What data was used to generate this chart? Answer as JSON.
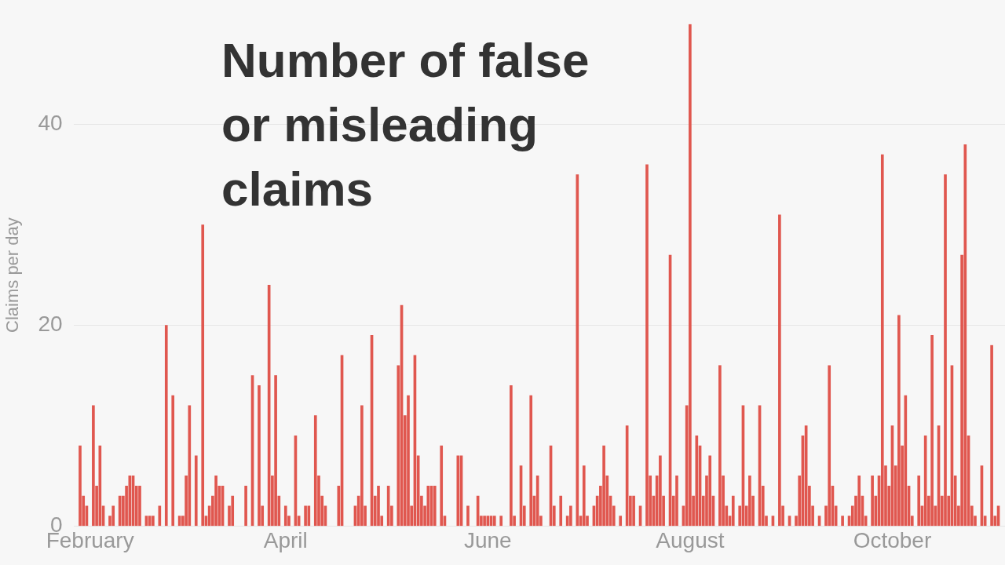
{
  "chart_data": {
    "type": "bar",
    "title": "Number of false or misleading claims",
    "ylabel": "Claims per day",
    "x": [
      "--01-29",
      "--01-30",
      "--01-31",
      "--02-02",
      "--02-03",
      "--02-04",
      "--02-05",
      "--02-07",
      "--02-08",
      "--02-10",
      "--02-11",
      "--02-12",
      "--02-13",
      "--02-14",
      "--02-15",
      "--02-16",
      "--02-18",
      "--02-19",
      "--02-20",
      "--02-22",
      "--02-24",
      "--02-26",
      "--02-28",
      "--03-01",
      "--03-02",
      "--03-03",
      "--03-05",
      "--03-07",
      "--03-08",
      "--03-09",
      "--03-10",
      "--03-11",
      "--03-12",
      "--03-13",
      "--03-15",
      "--03-16",
      "--03-20",
      "--03-22",
      "--03-24",
      "--03-25",
      "--03-27",
      "--03-28",
      "--03-29",
      "--03-30",
      "--04-01",
      "--04-02",
      "--04-04",
      "--04-05",
      "--04-07",
      "--04-08",
      "--04-10",
      "--04-11",
      "--04-12",
      "--04-13",
      "--04-17",
      "--04-18",
      "--04-22",
      "--04-23",
      "--04-24",
      "--04-25",
      "--04-27",
      "--04-28",
      "--04-29",
      "--04-30",
      "--05-02",
      "--05-03",
      "--05-05",
      "--05-06",
      "--05-07",
      "--05-08",
      "--05-09",
      "--05-10",
      "--05-11",
      "--05-12",
      "--05-13",
      "--05-14",
      "--05-15",
      "--05-16",
      "--05-18",
      "--05-19",
      "--05-23",
      "--05-24",
      "--05-26",
      "--05-29",
      "--05-30",
      "--05-31",
      "--06-01",
      "--06-02",
      "--06-03",
      "--06-05",
      "--06-08",
      "--06-09",
      "--06-11",
      "--06-12",
      "--06-14",
      "--06-15",
      "--06-16",
      "--06-17",
      "--06-20",
      "--06-21",
      "--06-23",
      "--06-25",
      "--06-26",
      "--06-28",
      "--06-29",
      "--06-30",
      "--07-01",
      "--07-03",
      "--07-04",
      "--07-05",
      "--07-06",
      "--07-07",
      "--07-08",
      "--07-09",
      "--07-11",
      "--07-13",
      "--07-14",
      "--07-15",
      "--07-17",
      "--07-19",
      "--07-20",
      "--07-21",
      "--07-22",
      "--07-23",
      "--07-24",
      "--07-26",
      "--07-27",
      "--07-28",
      "--07-30",
      "--07-31",
      "--08-01",
      "--08-02",
      "--08-03",
      "--08-04",
      "--08-05",
      "--08-06",
      "--08-07",
      "--08-08",
      "--08-10",
      "--08-11",
      "--08-12",
      "--08-13",
      "--08-14",
      "--08-16",
      "--08-17",
      "--08-18",
      "--08-19",
      "--08-20",
      "--08-22",
      "--08-23",
      "--08-24",
      "--08-26",
      "--08-28",
      "--08-29",
      "--08-31",
      "--09-02",
      "--09-03",
      "--09-04",
      "--09-05",
      "--09-06",
      "--09-07",
      "--09-09",
      "--09-11",
      "--09-12",
      "--09-13",
      "--09-14",
      "--09-16",
      "--09-18",
      "--09-19",
      "--09-20",
      "--09-21",
      "--09-22",
      "--09-23",
      "--09-25",
      "--09-26",
      "--09-27",
      "--09-28",
      "--09-29",
      "--09-30",
      "--10-01",
      "--10-02",
      "--10-03",
      "--10-04",
      "--10-05",
      "--10-06",
      "--10-07",
      "--10-09",
      "--10-10",
      "--10-11",
      "--10-12",
      "--10-13",
      "--10-14",
      "--10-15",
      "--10-16",
      "--10-17",
      "--10-18",
      "--10-19",
      "--10-20",
      "--10-21",
      "--10-22",
      "--10-23",
      "--10-24",
      "--10-25",
      "--10-26",
      "--10-28",
      "--10-29",
      "--10-31",
      "--11-01",
      "--11-02"
    ],
    "values": [
      8,
      3,
      2,
      12,
      4,
      8,
      2,
      1,
      2,
      3,
      3,
      4,
      5,
      5,
      4,
      4,
      1,
      1,
      1,
      2,
      20,
      13,
      1,
      1,
      5,
      12,
      7,
      30,
      1,
      2,
      3,
      5,
      4,
      4,
      2,
      3,
      4,
      15,
      14,
      2,
      24,
      5,
      15,
      3,
      2,
      1,
      9,
      1,
      2,
      2,
      11,
      5,
      3,
      2,
      4,
      17,
      2,
      3,
      12,
      2,
      19,
      3,
      4,
      1,
      4,
      2,
      16,
      22,
      11,
      13,
      2,
      17,
      7,
      3,
      2,
      4,
      4,
      4,
      8,
      1,
      7,
      7,
      2,
      3,
      1,
      1,
      1,
      1,
      1,
      1,
      14,
      1,
      6,
      2,
      13,
      3,
      5,
      1,
      8,
      2,
      3,
      1,
      2,
      35,
      1,
      6,
      1,
      2,
      3,
      4,
      8,
      5,
      3,
      2,
      1,
      10,
      3,
      3,
      2,
      36,
      5,
      3,
      5,
      7,
      3,
      27,
      3,
      5,
      2,
      12,
      50,
      3,
      9,
      8,
      3,
      5,
      7,
      3,
      16,
      5,
      2,
      1,
      3,
      2,
      12,
      2,
      5,
      3,
      12,
      4,
      1,
      1,
      31,
      2,
      1,
      1,
      5,
      9,
      10,
      4,
      2,
      1,
      2,
      16,
      4,
      2,
      1,
      1,
      2,
      3,
      5,
      3,
      1,
      5,
      3,
      5,
      37,
      6,
      4,
      10,
      6,
      21,
      8,
      13,
      4,
      1,
      5,
      2,
      9,
      3,
      19,
      2,
      10,
      3,
      35,
      3,
      16,
      5,
      2,
      27,
      38,
      9,
      2,
      1,
      6,
      1,
      18,
      1,
      2
    ],
    "color": "#e0574f",
    "xlim": [
      "--01-27",
      "--11-04"
    ],
    "xticks": [
      {
        "value": "--02-01",
        "label": "February"
      },
      {
        "value": "--04-01",
        "label": "April"
      },
      {
        "value": "--06-01",
        "label": "June"
      },
      {
        "value": "--08-01",
        "label": "August"
      },
      {
        "value": "--10-01",
        "label": "October"
      }
    ],
    "ylim": [
      0,
      50
    ],
    "yticks": [
      0,
      20,
      40
    ],
    "grid": "y",
    "legend": false
  }
}
